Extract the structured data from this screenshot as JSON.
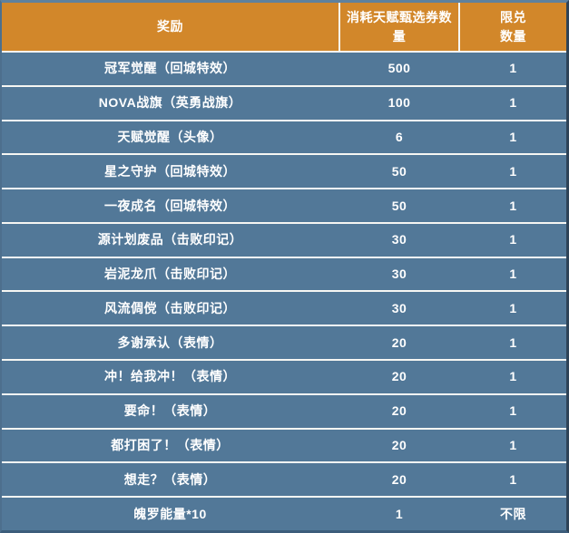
{
  "colors": {
    "header_bg": "#d2872a",
    "row_bg": "#527898",
    "separator": "#f6f6f3",
    "text": "#ffffff",
    "border_dark": "#2e4357",
    "border_light": "#5f819d"
  },
  "table": {
    "header": {
      "columns": [
        {
          "lines": [
            "奖励"
          ]
        },
        {
          "lines": [
            "消耗天赋甄选券数",
            "量"
          ]
        },
        {
          "lines": [
            "限兑",
            "数量"
          ]
        }
      ]
    },
    "rows": [
      {
        "reward": "冠军觉醒（回城特效）",
        "cost": "500",
        "limit": "1"
      },
      {
        "reward": "NOVA战旗（英勇战旗）",
        "cost": "100",
        "limit": "1"
      },
      {
        "reward": "天赋觉醒（头像）",
        "cost": "6",
        "limit": "1"
      },
      {
        "reward": "星之守护（回城特效）",
        "cost": "50",
        "limit": "1"
      },
      {
        "reward": "一夜成名（回城特效）",
        "cost": "50",
        "limit": "1"
      },
      {
        "reward": "源计划废品（击败印记）",
        "cost": "30",
        "limit": "1"
      },
      {
        "reward": "岩泥龙爪（击败印记）",
        "cost": "30",
        "limit": "1"
      },
      {
        "reward": "风流倜傥（击败印记）",
        "cost": "30",
        "limit": "1"
      },
      {
        "reward": "多谢承认（表情）",
        "cost": "20",
        "limit": "1"
      },
      {
        "reward": "冲！给我冲！（表情）",
        "cost": "20",
        "limit": "1"
      },
      {
        "reward": "要命！（表情）",
        "cost": "20",
        "limit": "1"
      },
      {
        "reward": "都打困了！（表情）",
        "cost": "20",
        "limit": "1"
      },
      {
        "reward": "想走？（表情）",
        "cost": "20",
        "limit": "1"
      },
      {
        "reward": "魄罗能量*10",
        "cost": "1",
        "limit": "不限"
      }
    ]
  }
}
